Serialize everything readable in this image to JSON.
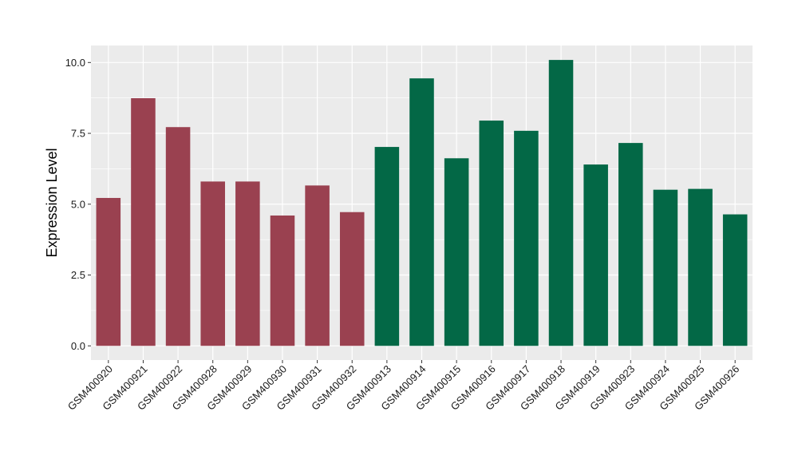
{
  "chart_data": {
    "type": "bar",
    "title": "",
    "xlabel": "",
    "ylabel": "Expression Level",
    "ylim": [
      -0.5,
      10.6
    ],
    "yticks": [
      0.0,
      2.5,
      5.0,
      7.5,
      10.0
    ],
    "ytick_labels": [
      "0.0",
      "2.5",
      "5.0",
      "7.5",
      "10.0"
    ],
    "grid": true,
    "legend": "none",
    "categories": [
      "GSM400920",
      "GSM400921",
      "GSM400922",
      "GSM400928",
      "GSM400929",
      "GSM400930",
      "GSM400931",
      "GSM400932",
      "GSM400913",
      "GSM400914",
      "GSM400915",
      "GSM400916",
      "GSM400917",
      "GSM400918",
      "GSM400919",
      "GSM400923",
      "GSM400924",
      "GSM400925",
      "GSM400926"
    ],
    "values": [
      5.22,
      8.74,
      7.72,
      5.8,
      5.8,
      4.6,
      5.66,
      4.72,
      7.02,
      9.44,
      6.62,
      7.95,
      7.59,
      10.09,
      6.4,
      7.16,
      5.51,
      5.54,
      4.64
    ],
    "groups": [
      "a",
      "a",
      "a",
      "a",
      "a",
      "a",
      "a",
      "a",
      "b",
      "b",
      "b",
      "b",
      "b",
      "b",
      "b",
      "b",
      "b",
      "b",
      "b"
    ],
    "group_colors": {
      "a": "#9a4150",
      "b": "#036846"
    },
    "panel_color": "#ebebeb",
    "grid_color": "#ffffff"
  }
}
